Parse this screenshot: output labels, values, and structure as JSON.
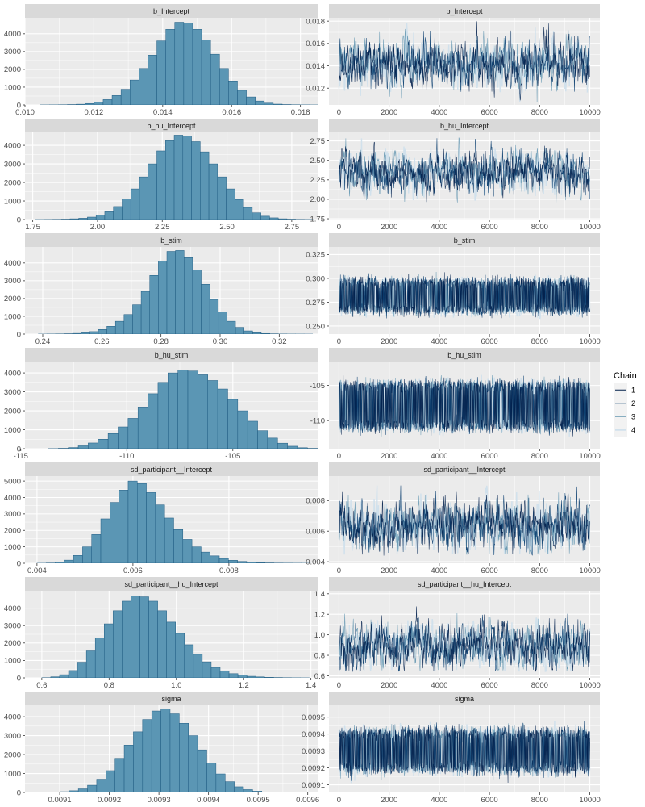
{
  "colors": {
    "panel_bg": "#ebebeb",
    "strip_bg": "#d9d9d9",
    "grid": "#ffffff",
    "bar_fill": "#5b96b4",
    "bar_edge": "#1e5a80",
    "chains": [
      "#011f4b",
      "#03396c",
      "#6497b1",
      "#d1e1ec"
    ]
  },
  "legend": {
    "title": "Chain",
    "labels": [
      "1",
      "2",
      "3",
      "4"
    ]
  },
  "chart_data": [
    {
      "type": "bar",
      "title": "b_Intercept",
      "x_range": [
        0.01,
        0.0185
      ],
      "x_ticks": [
        0.01,
        0.012,
        0.014,
        0.016,
        0.018
      ],
      "x_tick_labels": [
        "0.010",
        "0.012",
        "0.014",
        "0.016",
        "0.018"
      ],
      "ylim": [
        0,
        4900
      ],
      "y_ticks": [
        0,
        1000,
        2000,
        3000,
        4000
      ],
      "bins": {
        "start": 0.01045,
        "width": 0.00026,
        "counts": [
          3,
          5,
          10,
          20,
          40,
          80,
          160,
          300,
          530,
          880,
          1400,
          2050,
          2800,
          3600,
          4250,
          4650,
          4600,
          4250,
          3650,
          2850,
          2050,
          1350,
          820,
          450,
          220,
          100,
          45,
          20,
          10,
          5,
          3,
          2
        ]
      }
    },
    {
      "type": "line",
      "title": "b_Intercept",
      "x_range": [
        -400,
        10400
      ],
      "x_ticks": [
        0,
        2000,
        4000,
        6000,
        8000,
        10000
      ],
      "ylim": [
        0.0105,
        0.0183
      ],
      "y_ticks": [
        0.012,
        0.014,
        0.016,
        0.018
      ],
      "y_tick_labels": [
        "0.012",
        "0.014",
        "0.016",
        "0.018"
      ],
      "chains": {
        "iterations": [
          0,
          10000
        ],
        "center": 0.0143,
        "sd": 0.001,
        "min": 0.0107,
        "max": 0.018,
        "bimodal_offset": 0
      }
    },
    {
      "type": "bar",
      "title": "b_hu_Intercept",
      "x_range": [
        1.72,
        2.85
      ],
      "x_ticks": [
        1.75,
        2.0,
        2.25,
        2.5,
        2.75
      ],
      "x_tick_labels": [
        "1.75",
        "2.00",
        "2.25",
        "2.50",
        "2.75"
      ],
      "ylim": [
        0,
        4700
      ],
      "y_ticks": [
        0,
        1000,
        2000,
        3000,
        4000
      ],
      "bins": {
        "start": 1.76,
        "width": 0.0335,
        "counts": [
          2,
          5,
          10,
          20,
          40,
          70,
          130,
          250,
          420,
          700,
          1100,
          1650,
          2300,
          3000,
          3700,
          4250,
          4550,
          4500,
          4200,
          3650,
          3000,
          2300,
          1650,
          1080,
          650,
          360,
          180,
          90,
          40,
          20,
          8,
          4
        ]
      }
    },
    {
      "type": "line",
      "title": "b_hu_Intercept",
      "x_range": [
        -400,
        10400
      ],
      "x_ticks": [
        0,
        2000,
        4000,
        6000,
        8000,
        10000
      ],
      "ylim": [
        1.74,
        2.86
      ],
      "y_ticks": [
        1.75,
        2.0,
        2.25,
        2.5,
        2.75
      ],
      "y_tick_labels": [
        "1.75",
        "2.00",
        "2.25",
        "2.50",
        "2.75"
      ],
      "chains": {
        "iterations": [
          0,
          10000
        ],
        "center": 2.35,
        "sd": 0.13,
        "min": 1.8,
        "max": 2.82,
        "bimodal_offset": 0
      }
    },
    {
      "type": "bar",
      "title": "b_stim",
      "x_range": [
        0.234,
        0.333
      ],
      "x_ticks": [
        0.24,
        0.26,
        0.28,
        0.3,
        0.32
      ],
      "x_tick_labels": [
        "0.24",
        "0.26",
        "0.28",
        "0.30",
        "0.32"
      ],
      "ylim": [
        0,
        4900
      ],
      "y_ticks": [
        0,
        1000,
        2000,
        3000,
        4000
      ],
      "bins": {
        "start": 0.2385,
        "width": 0.0029,
        "counts": [
          2,
          5,
          10,
          20,
          40,
          75,
          140,
          260,
          440,
          720,
          1100,
          1650,
          2400,
          3300,
          4100,
          4650,
          4700,
          4300,
          3600,
          2800,
          1950,
          1250,
          720,
          380,
          180,
          80,
          35,
          15,
          6,
          3,
          2,
          1
        ]
      }
    },
    {
      "type": "line",
      "title": "b_stim",
      "x_range": [
        -400,
        10400
      ],
      "x_ticks": [
        0,
        2000,
        4000,
        6000,
        8000,
        10000
      ],
      "ylim": [
        0.2415,
        0.333
      ],
      "y_ticks": [
        0.25,
        0.275,
        0.3,
        0.325
      ],
      "y_tick_labels": [
        "0.250",
        "0.275",
        "0.300",
        "0.325"
      ],
      "chains": {
        "iterations": [
          0,
          10000
        ],
        "center": 0.2815,
        "sd": 0.009,
        "min": 0.245,
        "max": 0.328,
        "bimodal_offset": 0.0145
      }
    },
    {
      "type": "bar",
      "title": "b_hu_stim",
      "x_range": [
        -114.8,
        -101.0
      ],
      "x_ticks": [
        -115,
        -110,
        -105
      ],
      "x_tick_labels": [
        "-115",
        "-110",
        "-105"
      ],
      "ylim": [
        0,
        4600
      ],
      "y_ticks": [
        0,
        1000,
        2000,
        3000,
        4000
      ],
      "bins": {
        "start": -113.7,
        "width": 0.47,
        "counts": [
          5,
          20,
          60,
          150,
          300,
          500,
          800,
          1150,
          1600,
          2200,
          2900,
          3500,
          4000,
          4150,
          4100,
          3900,
          3600,
          3150,
          2600,
          2000,
          1450,
          950,
          560,
          290,
          130,
          50,
          18,
          6,
          2
        ]
      }
    },
    {
      "type": "line",
      "title": "b_hu_stim",
      "x_range": [
        -400,
        10400
      ],
      "x_ticks": [
        0,
        2000,
        4000,
        6000,
        8000,
        10000
      ],
      "ylim": [
        -114.0,
        -101.6
      ],
      "y_ticks": [
        -110,
        -105
      ],
      "y_tick_labels": [
        "-110",
        "-105"
      ],
      "chains": {
        "iterations": [
          0,
          10000
        ],
        "center": -107.9,
        "sd": 1.5,
        "min": -113.5,
        "max": -102.2,
        "bimodal_offset": 2.9
      }
    },
    {
      "type": "bar",
      "title": "sd_participant__Intercept",
      "x_range": [
        0.00375,
        0.00985
      ],
      "x_ticks": [
        0.004,
        0.006,
        0.008
      ],
      "x_tick_labels": [
        "0.004",
        "0.006",
        "0.008"
      ],
      "ylim": [
        0,
        5300
      ],
      "y_ticks": [
        0,
        1000,
        2000,
        3000,
        4000,
        5000
      ],
      "bins": {
        "start": 0.004,
        "width": 0.00019,
        "counts": [
          3,
          15,
          60,
          190,
          480,
          1000,
          1750,
          2700,
          3700,
          4450,
          5000,
          4850,
          4300,
          3550,
          2750,
          2050,
          1450,
          1000,
          680,
          450,
          290,
          180,
          110,
          65,
          38,
          22,
          12,
          7,
          4,
          2
        ]
      }
    },
    {
      "type": "line",
      "title": "sd_participant__Intercept",
      "x_range": [
        -400,
        10400
      ],
      "x_ticks": [
        0,
        2000,
        4000,
        6000,
        8000,
        10000
      ],
      "ylim": [
        0.0039,
        0.0096
      ],
      "y_ticks": [
        0.004,
        0.006,
        0.008
      ],
      "y_tick_labels": [
        "0.004",
        "0.006",
        "0.008"
      ],
      "chains": {
        "iterations": [
          0,
          10000
        ],
        "center": 0.0064,
        "sd": 0.0008,
        "min": 0.0044,
        "max": 0.0095,
        "bimodal_offset": 0
      }
    },
    {
      "type": "bar",
      "title": "sd_participant__hu_Intercept",
      "x_range": [
        0.55,
        1.42
      ],
      "x_ticks": [
        0.6,
        0.8,
        1.0,
        1.2,
        1.4
      ],
      "x_tick_labels": [
        "0.6",
        "0.8",
        "1.0",
        "1.2",
        "1.4"
      ],
      "ylim": [
        0,
        5000
      ],
      "y_ticks": [
        0,
        1000,
        2000,
        3000,
        4000
      ],
      "bins": {
        "start": 0.6,
        "width": 0.0265,
        "counts": [
          10,
          60,
          180,
          420,
          900,
          1550,
          2300,
          3100,
          3850,
          4400,
          4700,
          4650,
          4400,
          3850,
          3200,
          2550,
          1900,
          1350,
          920,
          600,
          390,
          240,
          150,
          90,
          55,
          32,
          18,
          10,
          5,
          3
        ]
      }
    },
    {
      "type": "line",
      "title": "sd_participant__hu_Intercept",
      "x_range": [
        -400,
        10400
      ],
      "x_ticks": [
        0,
        2000,
        4000,
        6000,
        8000,
        10000
      ],
      "ylim": [
        0.58,
        1.43
      ],
      "y_ticks": [
        0.6,
        0.8,
        1.0,
        1.2,
        1.4
      ],
      "y_tick_labels": [
        "0.6",
        "0.8",
        "1.0",
        "1.2",
        "1.4"
      ],
      "chains": {
        "iterations": [
          0,
          10000
        ],
        "center": 0.89,
        "sd": 0.11,
        "min": 0.64,
        "max": 1.35,
        "bimodal_offset": 0
      }
    },
    {
      "type": "bar",
      "title": "sigma",
      "x_range": [
        0.00903,
        0.00962
      ],
      "x_ticks": [
        0.0091,
        0.0092,
        0.0093,
        0.0094,
        0.0095,
        0.0096
      ],
      "x_tick_labels": [
        "0.0091",
        "0.0092",
        "0.0093",
        "0.0094",
        "0.0095",
        "0.0096"
      ],
      "ylim": [
        0,
        4600
      ],
      "y_ticks": [
        0,
        1000,
        2000,
        3000,
        4000
      ],
      "bins": {
        "start": 0.009045,
        "width": 1.85e-05,
        "counts": [
          2,
          6,
          15,
          40,
          90,
          190,
          380,
          700,
          1150,
          1800,
          2500,
          3200,
          3850,
          4300,
          4400,
          4150,
          3650,
          3000,
          2250,
          1550,
          980,
          570,
          300,
          150,
          70,
          30,
          12,
          5,
          2,
          1
        ]
      }
    },
    {
      "type": "line",
      "title": "sigma",
      "x_range": [
        -400,
        10400
      ],
      "x_ticks": [
        0,
        2000,
        4000,
        6000,
        8000,
        10000
      ],
      "ylim": [
        0.009055,
        0.00957
      ],
      "y_ticks": [
        0.0091,
        0.0092,
        0.0093,
        0.0094,
        0.0095
      ],
      "y_tick_labels": [
        "0.0091",
        "0.0092",
        "0.0093",
        "0.0094",
        "0.0095"
      ],
      "chains": {
        "iterations": [
          0,
          10000
        ],
        "center": 0.0093,
        "sd": 6.5e-05,
        "min": 0.00908,
        "max": 0.00955,
        "bimodal_offset": 0.000105
      }
    }
  ]
}
